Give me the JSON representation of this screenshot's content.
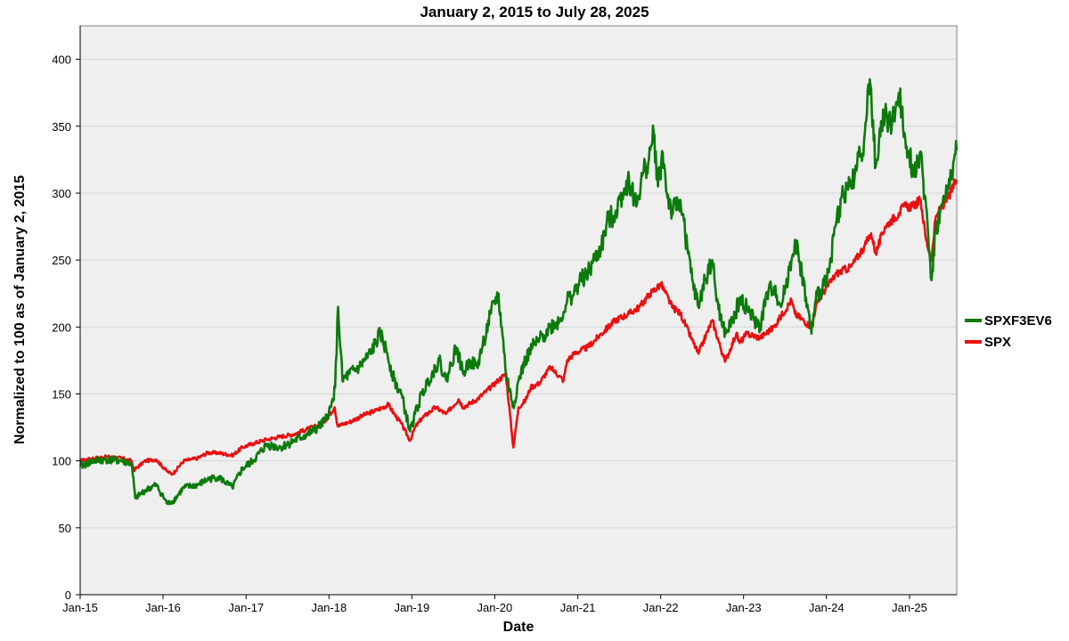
{
  "chart_data": {
    "type": "line",
    "title": "January 2, 2015 to July 28, 2025",
    "xlabel": "Date",
    "ylabel": "Normalized to 100 as of January 2, 2015",
    "ylim": [
      0,
      425
    ],
    "xlim": [
      "2015-01-01",
      "2025-07-28"
    ],
    "grid": true,
    "legend": "right",
    "y_ticks": [
      0,
      50,
      100,
      150,
      200,
      250,
      300,
      350,
      400
    ],
    "y_tick_labels": [
      "0",
      "50",
      "100",
      "150",
      "200",
      "250",
      "300",
      "350",
      "400"
    ],
    "x_ticks": [
      "2015-01-01",
      "2016-01-01",
      "2017-01-01",
      "2018-01-01",
      "2019-01-01",
      "2020-01-01",
      "2021-01-01",
      "2022-01-01",
      "2023-01-01",
      "2024-01-01",
      "2025-01-01"
    ],
    "x_tick_labels": [
      "Jan-15",
      "Jan-16",
      "Jan-17",
      "Jan-18",
      "Jan-19",
      "Jan-20",
      "Jan-21",
      "Jan-22",
      "Jan-23",
      "Jan-24",
      "Jan-25"
    ],
    "series": [
      {
        "name": "SPXF3EV6",
        "color": "#0b7a0b",
        "x": [
          "2015-01-02",
          "2015-03-01",
          "2015-05-01",
          "2015-07-01",
          "2015-08-15",
          "2015-09-01",
          "2015-10-15",
          "2015-12-01",
          "2016-01-20",
          "2016-02-15",
          "2016-04-01",
          "2016-06-01",
          "2016-07-15",
          "2016-09-01",
          "2016-11-01",
          "2016-12-15",
          "2017-02-01",
          "2017-04-01",
          "2017-06-01",
          "2017-08-01",
          "2017-10-01",
          "2017-11-15",
          "2017-12-15",
          "2018-01-10",
          "2018-01-28",
          "2018-02-10",
          "2018-03-01",
          "2018-04-01",
          "2018-05-15",
          "2018-07-01",
          "2018-08-15",
          "2018-09-15",
          "2018-10-15",
          "2018-11-15",
          "2018-12-24",
          "2019-01-15",
          "2019-02-15",
          "2019-03-15",
          "2019-05-01",
          "2019-06-01",
          "2019-07-15",
          "2019-08-15",
          "2019-09-15",
          "2019-10-15",
          "2019-11-15",
          "2019-12-15",
          "2020-01-15",
          "2020-02-01",
          "2020-02-20",
          "2020-03-23",
          "2020-04-15",
          "2020-05-15",
          "2020-06-15",
          "2020-07-15",
          "2020-09-01",
          "2020-10-15",
          "2020-11-15",
          "2020-12-15",
          "2021-01-15",
          "2021-02-15",
          "2021-03-15",
          "2021-04-15",
          "2021-05-15",
          "2021-06-15",
          "2021-07-15",
          "2021-08-15",
          "2021-09-15",
          "2021-10-15",
          "2021-11-10",
          "2021-12-01",
          "2021-12-20",
          "2022-01-10",
          "2022-01-28",
          "2022-02-20",
          "2022-03-29",
          "2022-05-01",
          "2022-05-20",
          "2022-06-16",
          "2022-07-15",
          "2022-08-16",
          "2022-09-01",
          "2022-09-30",
          "2022-10-15",
          "2022-11-15",
          "2022-12-15",
          "2023-01-15",
          "2023-02-15",
          "2023-03-15",
          "2023-04-15",
          "2023-05-15",
          "2023-06-15",
          "2023-07-31",
          "2023-08-15",
          "2023-09-15",
          "2023-10-27",
          "2023-11-15",
          "2023-12-15",
          "2024-01-15",
          "2024-02-15",
          "2024-03-15",
          "2024-04-15",
          "2024-05-15",
          "2024-06-15",
          "2024-07-10",
          "2024-08-05",
          "2024-08-20",
          "2024-09-15",
          "2024-10-15",
          "2024-11-15",
          "2024-12-10",
          "2024-12-31",
          "2025-01-20",
          "2025-02-15",
          "2025-03-15",
          "2025-04-08",
          "2025-04-25",
          "2025-05-15",
          "2025-06-15",
          "2025-07-28"
        ],
        "values": [
          96,
          100,
          101,
          100,
          98,
          72,
          78,
          82,
          68,
          70,
          80,
          82,
          86,
          88,
          80,
          94,
          100,
          112,
          110,
          115,
          120,
          125,
          130,
          140,
          155,
          215,
          160,
          165,
          170,
          180,
          195,
          180,
          160,
          150,
          122,
          135,
          150,
          160,
          175,
          160,
          185,
          165,
          175,
          170,
          190,
          210,
          225,
          200,
          165,
          140,
          160,
          175,
          185,
          190,
          200,
          205,
          220,
          225,
          235,
          240,
          250,
          260,
          280,
          285,
          300,
          310,
          290,
          315,
          325,
          345,
          305,
          330,
          300,
          285,
          295,
          255,
          235,
          215,
          235,
          250,
          225,
          200,
          195,
          205,
          220,
          215,
          205,
          200,
          225,
          230,
          215,
          250,
          265,
          240,
          195,
          220,
          230,
          245,
          280,
          300,
          305,
          320,
          340,
          385,
          320,
          340,
          360,
          350,
          375,
          345,
          330,
          315,
          330,
          290,
          235,
          270,
          285,
          300,
          332
        ]
      },
      {
        "name": "SPX",
        "color": "#e81010",
        "x": [
          "2015-01-02",
          "2015-03-01",
          "2015-05-01",
          "2015-07-01",
          "2015-08-15",
          "2015-08-25",
          "2015-10-15",
          "2015-12-01",
          "2016-01-20",
          "2016-02-11",
          "2016-04-01",
          "2016-06-01",
          "2016-07-15",
          "2016-09-01",
          "2016-11-01",
          "2016-12-15",
          "2017-02-01",
          "2017-04-01",
          "2017-06-01",
          "2017-08-01",
          "2017-10-01",
          "2017-12-01",
          "2018-01-26",
          "2018-02-08",
          "2018-04-01",
          "2018-06-01",
          "2018-08-01",
          "2018-09-20",
          "2018-10-15",
          "2018-11-15",
          "2018-12-24",
          "2019-01-15",
          "2019-02-15",
          "2019-04-15",
          "2019-05-31",
          "2019-07-26",
          "2019-08-15",
          "2019-10-15",
          "2019-12-15",
          "2020-01-15",
          "2020-02-19",
          "2020-03-23",
          "2020-04-15",
          "2020-05-15",
          "2020-06-08",
          "2020-07-15",
          "2020-09-02",
          "2020-10-30",
          "2020-11-15",
          "2020-12-15",
          "2021-02-15",
          "2021-04-15",
          "2021-06-15",
          "2021-08-15",
          "2021-09-30",
          "2021-11-15",
          "2022-01-03",
          "2022-02-20",
          "2022-03-29",
          "2022-05-20",
          "2022-06-16",
          "2022-08-16",
          "2022-09-30",
          "2022-10-12",
          "2022-11-30",
          "2022-12-15",
          "2023-01-15",
          "2023-03-15",
          "2023-05-15",
          "2023-07-31",
          "2023-08-15",
          "2023-10-27",
          "2023-11-15",
          "2023-12-15",
          "2024-02-15",
          "2024-04-19",
          "2024-06-15",
          "2024-07-16",
          "2024-08-05",
          "2024-09-15",
          "2024-11-15",
          "2024-12-06",
          "2025-01-15",
          "2025-02-19",
          "2025-03-15",
          "2025-04-08",
          "2025-04-25",
          "2025-05-15",
          "2025-06-15",
          "2025-07-28"
        ],
        "values": [
          100,
          102,
          103,
          102,
          100,
          93,
          100,
          101,
          92,
          90,
          100,
          102,
          106,
          106,
          104,
          110,
          113,
          116,
          118,
          120,
          124,
          127,
          140,
          126,
          129,
          134,
          138,
          142,
          135,
          128,
          115,
          125,
          132,
          140,
          135,
          146,
          140,
          146,
          155,
          160,
          165,
          110,
          140,
          145,
          155,
          158,
          170,
          160,
          175,
          180,
          185,
          195,
          205,
          210,
          215,
          225,
          232,
          215,
          210,
          190,
          180,
          205,
          180,
          174,
          195,
          188,
          195,
          192,
          200,
          220,
          210,
          200,
          215,
          225,
          240,
          245,
          260,
          270,
          255,
          275,
          285,
          290,
          290,
          295,
          265,
          250,
          280,
          288,
          295,
          310
        ]
      }
    ]
  }
}
